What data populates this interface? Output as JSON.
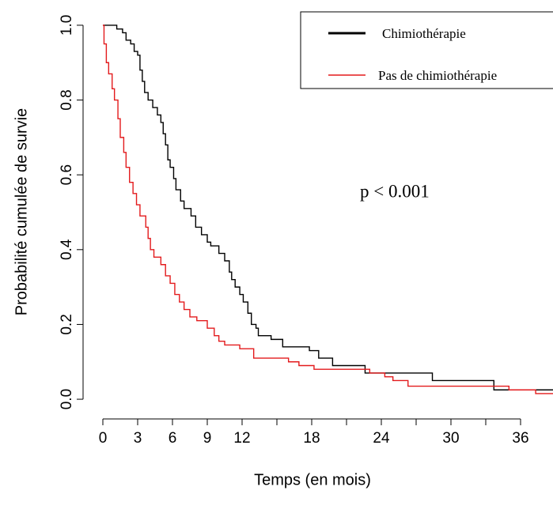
{
  "chart_data": {
    "type": "step",
    "xlabel": "Temps (en mois)",
    "ylabel": "Probabilité cumulée de survie",
    "annotation": "p < 0.001",
    "legend": "top-right",
    "xlim": [
      -1.5,
      40.5
    ],
    "ylim": [
      -0.04,
      1.04
    ],
    "xticks": [
      0,
      3,
      6,
      9,
      12,
      18,
      24,
      30,
      36
    ],
    "xminorticks": [
      15,
      21,
      27,
      33
    ],
    "yticks": [
      {
        "value": 0,
        "label": "0.0"
      },
      {
        "value": 0.2,
        "label": "0.2"
      },
      {
        "value": 0.4,
        "label": "0.4"
      },
      {
        "value": 0.6,
        "label": "0.6"
      },
      {
        "value": 0.8,
        "label": "0.8"
      },
      {
        "value": 1,
        "label": "1.0"
      }
    ],
    "series": [
      {
        "name": "Chimiothérapie",
        "color": "#000000",
        "x": [
          0,
          1.2,
          1.7,
          2.0,
          2.4,
          2.7,
          3.0,
          3.2,
          3.4,
          3.6,
          3.9,
          4.3,
          4.7,
          5.0,
          5.2,
          5.4,
          5.6,
          5.8,
          6.1,
          6.3,
          6.7,
          7.0,
          7.6,
          8.0,
          8.5,
          9.0,
          9.3,
          10.0,
          10.5,
          10.9,
          11.1,
          11.4,
          11.8,
          12.1,
          12.5,
          12.8,
          13.2,
          13.4,
          14.5,
          15.5,
          17.8,
          18.6,
          19.8,
          22.6,
          28.4,
          33.7,
          39.0
        ],
        "values": [
          1.0,
          0.99,
          0.98,
          0.96,
          0.95,
          0.93,
          0.92,
          0.88,
          0.85,
          0.82,
          0.8,
          0.78,
          0.76,
          0.74,
          0.71,
          0.68,
          0.64,
          0.62,
          0.59,
          0.56,
          0.53,
          0.51,
          0.49,
          0.46,
          0.44,
          0.42,
          0.41,
          0.39,
          0.37,
          0.34,
          0.32,
          0.3,
          0.28,
          0.26,
          0.23,
          0.2,
          0.19,
          0.17,
          0.16,
          0.14,
          0.13,
          0.11,
          0.09,
          0.07,
          0.05,
          0.025,
          0.025
        ]
      },
      {
        "name": "Pas de chimiothérapie",
        "color": "#e31a1c",
        "x": [
          0,
          0.1,
          0.3,
          0.5,
          0.8,
          1.0,
          1.3,
          1.5,
          1.8,
          2.0,
          2.3,
          2.6,
          2.9,
          3.2,
          3.7,
          3.9,
          4.1,
          4.4,
          5.0,
          5.4,
          5.8,
          6.2,
          6.6,
          7.0,
          7.5,
          8.1,
          9.0,
          9.6,
          10.0,
          10.5,
          11.8,
          13.0,
          16.0,
          16.9,
          18.2,
          23.0,
          24.3,
          25.0,
          26.3,
          35.0,
          37.3,
          39.5
        ],
        "values": [
          1.0,
          0.95,
          0.9,
          0.87,
          0.83,
          0.8,
          0.75,
          0.7,
          0.66,
          0.62,
          0.58,
          0.55,
          0.52,
          0.49,
          0.46,
          0.43,
          0.4,
          0.38,
          0.36,
          0.33,
          0.31,
          0.28,
          0.26,
          0.24,
          0.22,
          0.21,
          0.19,
          0.17,
          0.155,
          0.145,
          0.135,
          0.11,
          0.1,
          0.09,
          0.08,
          0.07,
          0.06,
          0.05,
          0.035,
          0.025,
          0.015,
          0.015
        ]
      }
    ]
  }
}
